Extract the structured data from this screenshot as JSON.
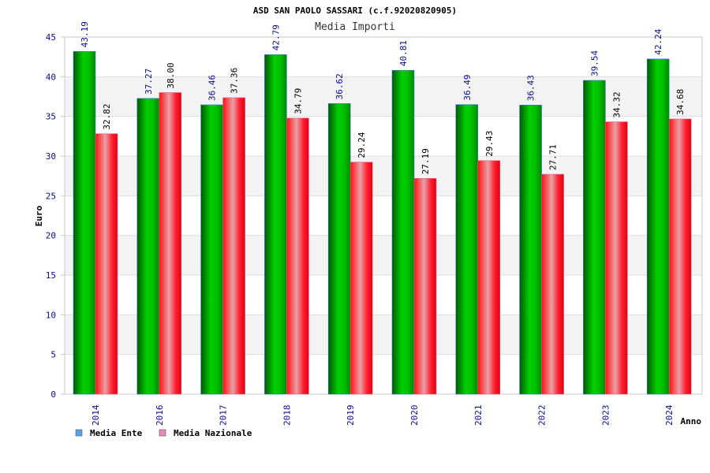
{
  "chart_data": {
    "type": "bar",
    "title": "ASD SAN PAOLO SASSARI (c.f.92020820905)",
    "subtitle": "Media Importi",
    "xlabel": "Anno",
    "ylabel": "Euro",
    "ylim": [
      0,
      45
    ],
    "yticks": [
      0,
      5,
      10,
      15,
      20,
      25,
      30,
      35,
      40,
      45
    ],
    "grid": true,
    "legend_position": "bottom-left",
    "categories": [
      "2014",
      "2016",
      "2017",
      "2018",
      "2019",
      "2020",
      "2021",
      "2022",
      "2023",
      "2024"
    ],
    "series": [
      {
        "name": "Media Ente",
        "color": "#00a000",
        "legend_color": "#5aa0e8",
        "values": [
          43.19,
          37.27,
          36.46,
          42.79,
          36.62,
          40.81,
          36.49,
          36.43,
          39.54,
          42.24
        ],
        "labels": [
          "43.19",
          "37.27",
          "36.46",
          "42.79",
          "36.62",
          "40.81",
          "36.49",
          "36.43",
          "39.54",
          "42.24"
        ]
      },
      {
        "name": "Media Nazionale",
        "color": "#e00010",
        "legend_color": "#e88aba",
        "values": [
          32.82,
          38.0,
          37.36,
          34.79,
          29.24,
          27.19,
          29.43,
          27.71,
          34.32,
          34.68
        ],
        "labels": [
          "32.82",
          "38.00",
          "37.36",
          "34.79",
          "29.24",
          "27.19",
          "29.43",
          "27.71",
          "34.32",
          "34.68"
        ]
      }
    ]
  }
}
